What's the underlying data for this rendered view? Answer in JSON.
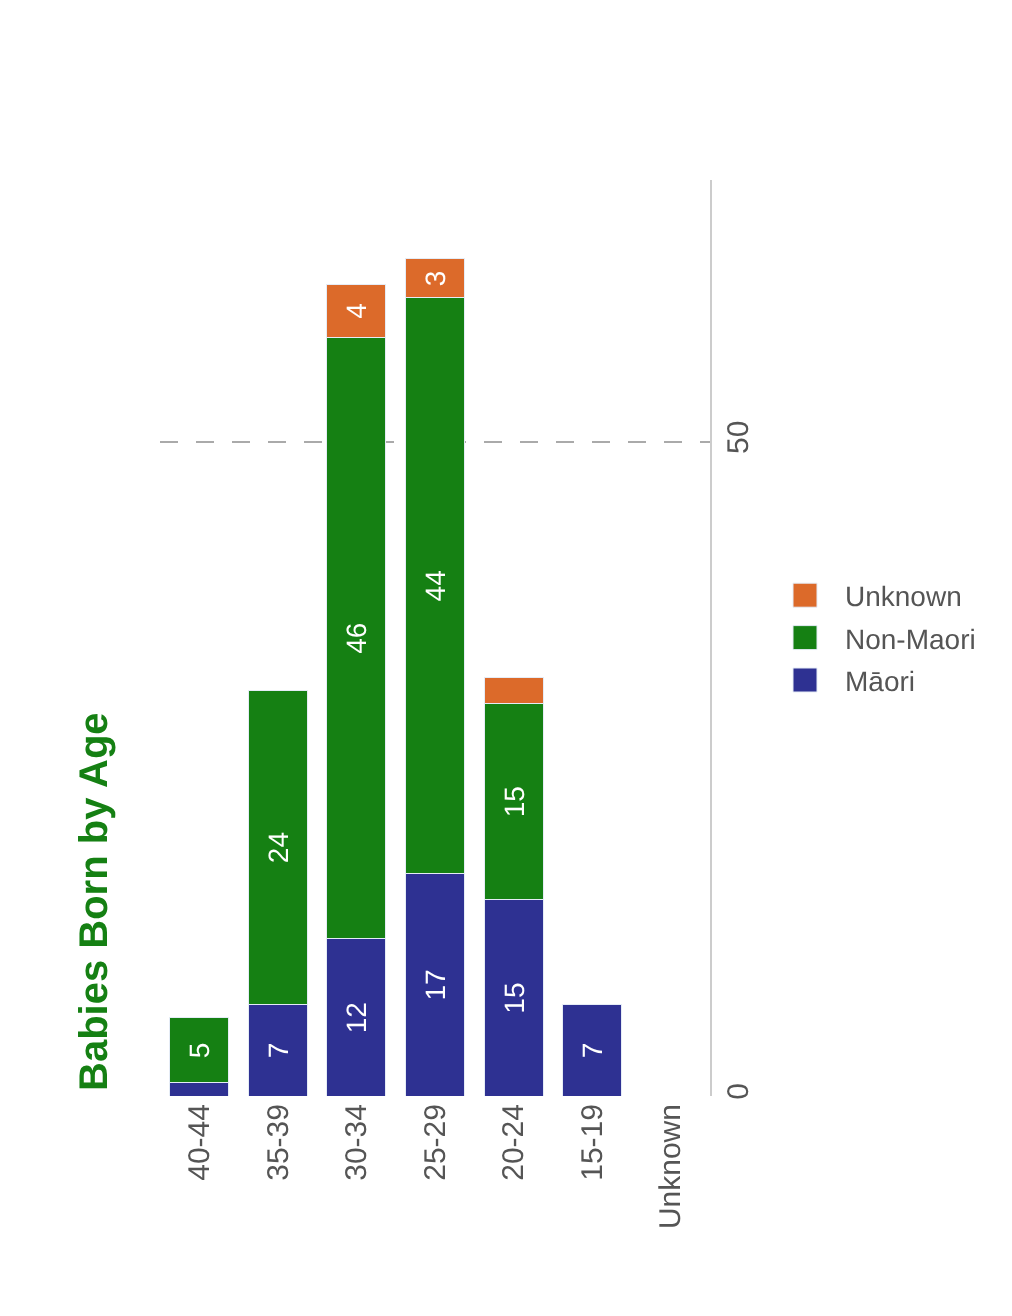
{
  "chart_data": {
    "type": "bar",
    "title": "Babies Born by Age",
    "categories": [
      "40-44",
      "35-39",
      "30-34",
      "25-29",
      "20-24",
      "15-19",
      "Unknown"
    ],
    "stacked": true,
    "series": [
      {
        "name": "Māori",
        "color": "#2e3192",
        "values": [
          1,
          7,
          12,
          17,
          15,
          7,
          null
        ],
        "value_labels": [
          null,
          "7",
          "12",
          "17",
          "15",
          "7",
          null
        ]
      },
      {
        "name": "Non-Maori",
        "color": "#158013",
        "values": [
          5,
          24,
          46,
          44,
          15,
          null,
          null
        ],
        "value_labels": [
          "5",
          "24",
          "46",
          "44",
          "15",
          null,
          null
        ]
      },
      {
        "name": "Unknown",
        "color": "#dc6a2a",
        "values": [
          null,
          null,
          4,
          3,
          2,
          null,
          null
        ],
        "value_labels": [
          null,
          null,
          "4",
          "3",
          null,
          null,
          null
        ]
      }
    ],
    "ylim": [
      0,
      70
    ],
    "yticks": [
      0,
      50
    ],
    "grid": "y",
    "legend": "right"
  }
}
